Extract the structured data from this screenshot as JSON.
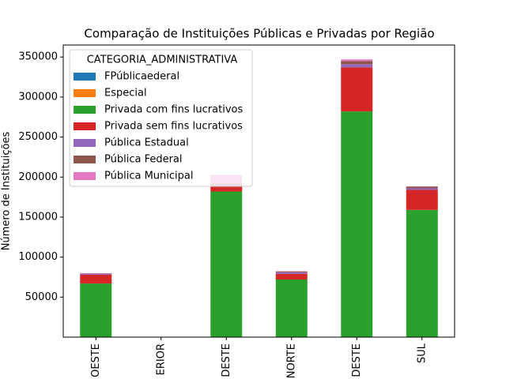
{
  "chart_data": {
    "type": "stacked_bar",
    "title": "Comparação de Instituições Públicas e Privadas por Região",
    "y_label": "Número de Instituições",
    "categories": [
      "OESTE",
      "ERIOR",
      "DESTE",
      "NORTE",
      "DESTE",
      "SUL"
    ],
    "legend_title": "CATEGORIA_ADMINISTRATIVA",
    "legend_position": "upper left",
    "series": [
      {
        "name": " FPúblicaederal",
        "color": "#1f77b4",
        "values": [
          0,
          0,
          0,
          0,
          0,
          0
        ]
      },
      {
        "name": "Especial",
        "color": "#ff7f0e",
        "values": [
          0,
          0,
          0,
          0,
          0,
          0
        ]
      },
      {
        "name": "Privada com fins lucrativos",
        "color": "#2ca02c",
        "values": [
          67000,
          0,
          182000,
          72000,
          282000,
          159000
        ]
      },
      {
        "name": "Privada sem fins lucrativos",
        "color": "#d62728",
        "values": [
          11000,
          0,
          6000,
          7000,
          55000,
          25000
        ]
      },
      {
        "name": "Pública Estadual",
        "color": "#9467bd",
        "values": [
          1000,
          0,
          2000,
          2000,
          4000,
          2000
        ]
      },
      {
        "name": "Pública Federal",
        "color": "#8c564b",
        "values": [
          500,
          0,
          2000,
          1000,
          4000,
          2000
        ]
      },
      {
        "name": "Pública Municipal",
        "color": "#e377c2",
        "values": [
          500,
          0,
          11000,
          500,
          2000,
          500
        ]
      }
    ],
    "ylim": [
      0,
      365000
    ],
    "yticks": [
      50000,
      100000,
      150000,
      200000,
      250000,
      300000,
      350000
    ]
  }
}
